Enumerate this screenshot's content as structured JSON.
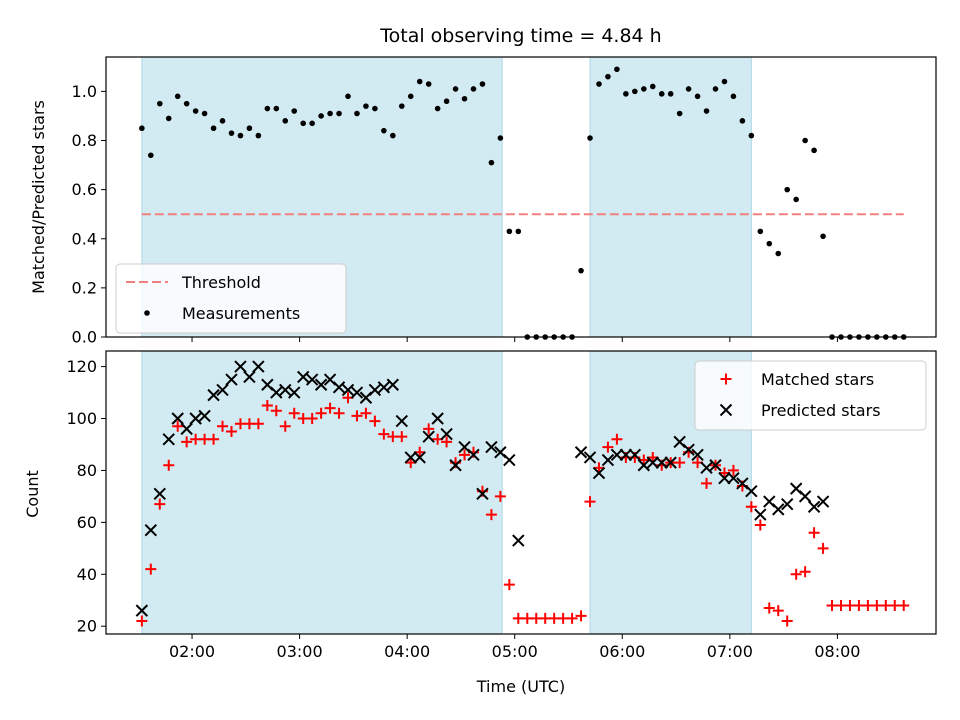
{
  "chart_data": [
    {
      "type": "scatter",
      "title": "Total observing time = 4.84 h",
      "xlabel": "",
      "ylabel": "Matched/Predicted stars",
      "xlim": [
        "01:12",
        "08:55"
      ],
      "ylim": [
        0,
        1.14
      ],
      "yticks": [
        "0.0",
        "0.2",
        "0.4",
        "0.6",
        "0.8",
        "1.0"
      ],
      "grid": false,
      "legend_position": "lower-left",
      "observing_windows": [
        [
          "01:32",
          "04:53"
        ],
        [
          "05:42",
          "07:12"
        ]
      ],
      "window_color": "#add8e6",
      "threshold": {
        "name": "Threshold",
        "y": 0.5,
        "x_range": [
          "01:32",
          "08:37"
        ],
        "color": "#f08080",
        "style": "dashed"
      },
      "series": [
        {
          "name": "Measurements",
          "color": "#000000",
          "marker": "dot",
          "x": [
            "01:32",
            "01:37",
            "01:42",
            "01:47",
            "01:52",
            "01:57",
            "02:02",
            "02:07",
            "02:12",
            "02:17",
            "02:22",
            "02:27",
            "02:32",
            "02:37",
            "02:42",
            "02:47",
            "02:52",
            "02:57",
            "03:02",
            "03:07",
            "03:12",
            "03:17",
            "03:22",
            "03:27",
            "03:32",
            "03:37",
            "03:42",
            "03:47",
            "03:52",
            "03:57",
            "04:02",
            "04:07",
            "04:12",
            "04:17",
            "04:22",
            "04:27",
            "04:32",
            "04:37",
            "04:42",
            "04:47",
            "04:52",
            "04:57",
            "05:02",
            "05:07",
            "05:12",
            "05:17",
            "05:22",
            "05:27",
            "05:32",
            "05:37",
            "05:42",
            "05:47",
            "05:52",
            "05:57",
            "06:02",
            "06:07",
            "06:12",
            "06:17",
            "06:22",
            "06:27",
            "06:32",
            "06:37",
            "06:42",
            "06:47",
            "06:52",
            "06:57",
            "07:02",
            "07:07",
            "07:12",
            "07:17",
            "07:22",
            "07:27",
            "07:32",
            "07:37",
            "07:42",
            "07:47",
            "07:52",
            "07:57",
            "08:02",
            "08:07",
            "08:12",
            "08:17",
            "08:22",
            "08:27",
            "08:32",
            "08:37"
          ],
          "y": [
            0.85,
            0.74,
            0.95,
            0.89,
            0.98,
            0.95,
            0.92,
            0.91,
            0.85,
            0.88,
            0.83,
            0.82,
            0.85,
            0.82,
            0.93,
            0.93,
            0.88,
            0.92,
            0.87,
            0.87,
            0.9,
            0.91,
            0.91,
            0.98,
            0.91,
            0.94,
            0.93,
            0.84,
            0.82,
            0.94,
            0.98,
            1.04,
            1.03,
            0.93,
            0.96,
            1.01,
            0.97,
            1.01,
            1.03,
            0.71,
            0.81,
            0.43,
            0.43,
            0.0,
            0.0,
            0.0,
            0.0,
            0.0,
            0.0,
            0.27,
            0.81,
            1.03,
            1.06,
            1.09,
            0.99,
            1.0,
            1.01,
            1.02,
            0.99,
            0.99,
            0.91,
            1.01,
            0.98,
            0.92,
            1.01,
            1.04,
            0.98,
            0.88,
            0.82,
            0.43,
            0.38,
            0.34,
            0.6,
            0.56,
            0.8,
            0.76,
            0.41,
            0.0,
            0.0,
            0.0,
            0.0,
            0.0,
            0.0,
            0.0,
            0.0,
            0.0
          ]
        }
      ]
    },
    {
      "type": "scatter",
      "title": "",
      "xlabel": "Time (UTC)",
      "ylabel": "Count",
      "xlim": [
        "01:12",
        "08:55"
      ],
      "ylim": [
        17,
        126
      ],
      "yticks": [
        "20",
        "40",
        "60",
        "80",
        "100",
        "120"
      ],
      "xticks": [
        "02:00",
        "03:00",
        "04:00",
        "05:00",
        "06:00",
        "07:00",
        "08:00"
      ],
      "grid": false,
      "legend_position": "top-right",
      "observing_windows": [
        [
          "01:32",
          "04:53"
        ],
        [
          "05:42",
          "07:12"
        ]
      ],
      "window_color": "#add8e6",
      "series": [
        {
          "name": "Matched stars",
          "color": "#ff0000",
          "marker": "plus",
          "x": [
            "01:32",
            "01:37",
            "01:42",
            "01:47",
            "01:52",
            "01:57",
            "02:02",
            "02:07",
            "02:12",
            "02:17",
            "02:22",
            "02:27",
            "02:32",
            "02:37",
            "02:42",
            "02:47",
            "02:52",
            "02:57",
            "03:02",
            "03:07",
            "03:12",
            "03:17",
            "03:22",
            "03:27",
            "03:32",
            "03:37",
            "03:42",
            "03:47",
            "03:52",
            "03:57",
            "04:02",
            "04:07",
            "04:12",
            "04:17",
            "04:22",
            "04:27",
            "04:32",
            "04:37",
            "04:42",
            "04:47",
            "04:52",
            "04:57",
            "05:02",
            "05:07",
            "05:12",
            "05:17",
            "05:22",
            "05:27",
            "05:32",
            "05:37",
            "05:42",
            "05:47",
            "05:52",
            "05:57",
            "06:02",
            "06:07",
            "06:12",
            "06:17",
            "06:22",
            "06:27",
            "06:32",
            "06:37",
            "06:42",
            "06:47",
            "06:52",
            "06:57",
            "07:02",
            "07:07",
            "07:12",
            "07:17",
            "07:22",
            "07:27",
            "07:32",
            "07:37",
            "07:42",
            "07:47",
            "07:52",
            "07:57",
            "08:02",
            "08:07",
            "08:12",
            "08:17",
            "08:22",
            "08:27",
            "08:32",
            "08:37"
          ],
          "y": [
            22,
            42,
            67,
            82,
            97,
            91,
            92,
            92,
            92,
            97,
            95,
            98,
            98,
            98,
            105,
            103,
            97,
            102,
            100,
            100,
            102,
            104,
            102,
            108,
            101,
            102,
            99,
            94,
            93,
            93,
            83,
            87,
            96,
            92,
            91,
            83,
            86,
            87,
            72,
            63,
            70,
            36,
            23,
            23,
            23,
            23,
            23,
            23,
            23,
            24,
            68,
            81,
            89,
            92,
            85,
            85,
            84,
            85,
            82,
            83,
            83,
            87,
            83,
            75,
            82,
            79,
            80,
            74,
            66,
            59,
            27,
            26,
            22,
            40,
            41,
            56,
            50,
            28,
            28,
            28,
            28,
            28,
            28,
            28,
            28,
            28
          ]
        },
        {
          "name": "Predicted stars",
          "color": "#000000",
          "marker": "x",
          "x": [
            "01:32",
            "01:37",
            "01:42",
            "01:47",
            "01:52",
            "01:57",
            "02:02",
            "02:07",
            "02:12",
            "02:17",
            "02:22",
            "02:27",
            "02:32",
            "02:37",
            "02:42",
            "02:47",
            "02:52",
            "02:57",
            "03:02",
            "03:07",
            "03:12",
            "03:17",
            "03:22",
            "03:27",
            "03:32",
            "03:37",
            "03:42",
            "03:47",
            "03:52",
            "03:57",
            "04:02",
            "04:07",
            "04:12",
            "04:17",
            "04:22",
            "04:27",
            "04:32",
            "04:37",
            "04:42",
            "04:47",
            "04:52",
            "04:57",
            "05:02",
            "05:37",
            "05:42",
            "05:47",
            "05:52",
            "05:57",
            "06:02",
            "06:07",
            "06:12",
            "06:17",
            "06:22",
            "06:27",
            "06:32",
            "06:37",
            "06:42",
            "06:47",
            "06:52",
            "06:57",
            "07:02",
            "07:07",
            "07:12",
            "07:17",
            "07:22",
            "07:27",
            "07:32",
            "07:37",
            "07:42",
            "07:47",
            "07:52"
          ],
          "y": [
            26,
            57,
            71,
            92,
            100,
            96,
            100,
            101,
            109,
            111,
            115,
            120,
            116,
            120,
            113,
            110,
            111,
            110,
            116,
            115,
            113,
            115,
            112,
            111,
            110,
            108,
            111,
            112,
            113,
            99,
            85,
            85,
            93,
            100,
            94,
            82,
            89,
            86,
            71,
            89,
            87,
            84,
            53,
            87,
            85,
            79,
            84,
            86,
            86,
            86,
            82,
            83,
            83,
            83,
            91,
            88,
            86,
            81,
            82,
            77,
            77,
            75,
            72,
            63,
            68,
            65,
            67,
            73,
            70,
            66,
            68
          ]
        }
      ]
    }
  ]
}
